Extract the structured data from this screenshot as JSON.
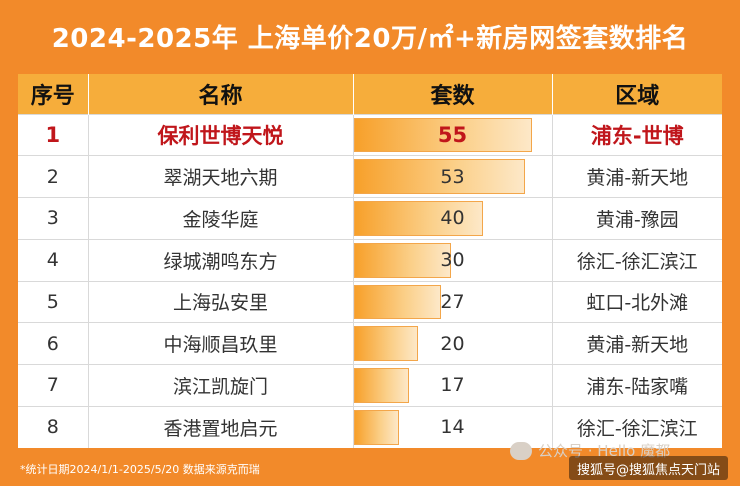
{
  "title": "2024-2025年 上海单价20万/㎡+新房网签套数排名",
  "headers": [
    "序号",
    "名称",
    "套数",
    "区域"
  ],
  "rows": [
    {
      "rank": "1",
      "name": "保利世博天悦",
      "count": 55,
      "area": "浦东-世博"
    },
    {
      "rank": "2",
      "name": "翠湖天地六期",
      "count": 53,
      "area": "黄浦-新天地"
    },
    {
      "rank": "3",
      "name": "金陵华庭",
      "count": 40,
      "area": "黄浦-豫园"
    },
    {
      "rank": "4",
      "name": "绿城潮鸣东方",
      "count": 30,
      "area": "徐汇-徐汇滨江"
    },
    {
      "rank": "5",
      "name": "上海弘安里",
      "count": 27,
      "area": "虹口-北外滩"
    },
    {
      "rank": "6",
      "name": "中海顺昌玖里",
      "count": 20,
      "area": "黄浦-新天地"
    },
    {
      "rank": "7",
      "name": "滨江凯旋门",
      "count": 17,
      "area": "浦东-陆家嘴"
    },
    {
      "rank": "8",
      "name": "香港置地启元",
      "count": 14,
      "area": "徐汇-徐汇滨江"
    }
  ],
  "footer_note": "*统计日期2024/1/1-2025/5/20 数据来源克而瑞",
  "watermark": "公众号 · Hello 魔都",
  "source_tag": "搜狐号@搜狐焦点天门站",
  "colors": {
    "background": "#f28a2a",
    "header": "#f6ad3b",
    "highlight": "#c0161b"
  }
}
